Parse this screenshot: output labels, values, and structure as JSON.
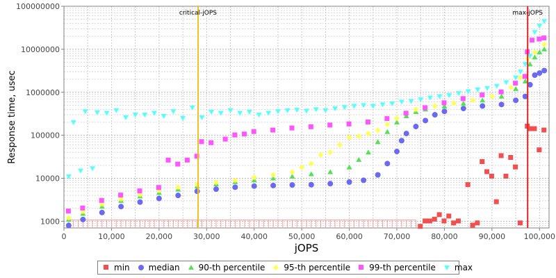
{
  "chart_data": {
    "type": "scatter",
    "xlabel": "jOPS",
    "ylabel": "Response time, usec",
    "xlim": [
      0,
      102000
    ],
    "ylim": [
      700,
      100000000
    ],
    "y_scale": "log",
    "grid": true,
    "legend_position": "bottom",
    "x_ticks": [
      {
        "value": 0,
        "label": "0"
      },
      {
        "value": 10000,
        "label": "10,000"
      },
      {
        "value": 20000,
        "label": "20,000"
      },
      {
        "value": 30000,
        "label": "30,000"
      },
      {
        "value": 40000,
        "label": "40,000"
      },
      {
        "value": 50000,
        "label": "50,000"
      },
      {
        "value": 60000,
        "label": "60,000"
      },
      {
        "value": 70000,
        "label": "70,000"
      },
      {
        "value": 80000,
        "label": "80,000"
      },
      {
        "value": 90000,
        "label": "90,000"
      },
      {
        "value": 100000,
        "label": "100,000"
      }
    ],
    "y_ticks": [
      {
        "value": 1000,
        "label": "1000"
      },
      {
        "value": 10000,
        "label": "10000"
      },
      {
        "value": 100000,
        "label": "100000"
      },
      {
        "value": 1000000,
        "label": "1000000"
      },
      {
        "value": 10000000,
        "label": "10000000"
      },
      {
        "value": 100000000,
        "label": "100000000"
      }
    ],
    "annotations": [
      {
        "label": "critical-jOPS",
        "x": 28200,
        "color": "#f0c020"
      },
      {
        "label": "max-jOPS",
        "x": 97500,
        "color": "#e62020"
      }
    ],
    "series": [
      {
        "name": "min",
        "color": "#f05050",
        "marker": "square",
        "points": [
          [
            75000,
            750
          ],
          [
            76000,
            1000
          ],
          [
            77000,
            1000
          ],
          [
            78000,
            1100
          ],
          [
            79000,
            1400
          ],
          [
            80000,
            1000
          ],
          [
            81000,
            1300
          ],
          [
            82000,
            900
          ],
          [
            83000,
            1000
          ],
          [
            85000,
            7000
          ],
          [
            86000,
            800
          ],
          [
            87000,
            900
          ],
          [
            88000,
            24000
          ],
          [
            89000,
            14000
          ],
          [
            90000,
            11000
          ],
          [
            91000,
            2800
          ],
          [
            92000,
            33000
          ],
          [
            93000,
            11000
          ],
          [
            94000,
            30000
          ],
          [
            95000,
            18000
          ],
          [
            96000,
            900
          ],
          [
            97500,
            160000
          ],
          [
            98000,
            140000
          ],
          [
            99000,
            140000
          ],
          [
            100000,
            45000
          ],
          [
            101000,
            130000
          ]
        ]
      },
      {
        "name": "median",
        "color": "#6a6af0",
        "marker": "circle",
        "points": [
          [
            1000,
            800
          ],
          [
            4000,
            1100
          ],
          [
            8000,
            1600
          ],
          [
            12000,
            2200
          ],
          [
            16000,
            2800
          ],
          [
            20000,
            3400
          ],
          [
            24000,
            4000
          ],
          [
            28000,
            5000
          ],
          [
            32000,
            5600
          ],
          [
            36000,
            6200
          ],
          [
            40000,
            6600
          ],
          [
            44000,
            6800
          ],
          [
            48000,
            7000
          ],
          [
            52000,
            7100
          ],
          [
            56000,
            7500
          ],
          [
            60000,
            8200
          ],
          [
            63000,
            9000
          ],
          [
            66000,
            12000
          ],
          [
            68000,
            22000
          ],
          [
            70000,
            42000
          ],
          [
            71000,
            75000
          ],
          [
            72000,
            110000
          ],
          [
            74000,
            160000
          ],
          [
            76000,
            220000
          ],
          [
            78000,
            300000
          ],
          [
            80000,
            360000
          ],
          [
            84000,
            420000
          ],
          [
            88000,
            480000
          ],
          [
            92000,
            520000
          ],
          [
            95000,
            650000
          ],
          [
            97000,
            800000
          ],
          [
            98000,
            1500000
          ],
          [
            99000,
            2500000
          ],
          [
            100000,
            2800000
          ],
          [
            101000,
            3200000
          ]
        ]
      },
      {
        "name": "90-th percentile",
        "color": "#55e055",
        "marker": "triangle-up",
        "points": [
          [
            1000,
            1100
          ],
          [
            4000,
            1500
          ],
          [
            8000,
            2200
          ],
          [
            12000,
            3000
          ],
          [
            16000,
            3800
          ],
          [
            20000,
            4600
          ],
          [
            24000,
            5500
          ],
          [
            28000,
            6500
          ],
          [
            32000,
            7300
          ],
          [
            36000,
            8200
          ],
          [
            40000,
            9000
          ],
          [
            44000,
            10000
          ],
          [
            48000,
            11000
          ],
          [
            52000,
            12500
          ],
          [
            56000,
            14000
          ],
          [
            60000,
            18000
          ],
          [
            62000,
            27000
          ],
          [
            64000,
            40000
          ],
          [
            66000,
            70000
          ],
          [
            68000,
            120000
          ],
          [
            70000,
            200000
          ],
          [
            72000,
            280000
          ],
          [
            74000,
            350000
          ],
          [
            76000,
            400000
          ],
          [
            80000,
            470000
          ],
          [
            84000,
            550000
          ],
          [
            88000,
            650000
          ],
          [
            92000,
            800000
          ],
          [
            95000,
            1200000
          ],
          [
            97000,
            1800000
          ],
          [
            98000,
            4500000
          ],
          [
            99000,
            6500000
          ],
          [
            100000,
            8500000
          ],
          [
            101000,
            10000000
          ]
        ]
      },
      {
        "name": "95-th percentile",
        "color": "#ffff55",
        "marker": "diamond",
        "points": [
          [
            1000,
            1200
          ],
          [
            4000,
            1700
          ],
          [
            8000,
            2500
          ],
          [
            12000,
            3300
          ],
          [
            16000,
            4200
          ],
          [
            20000,
            5200
          ],
          [
            24000,
            6200
          ],
          [
            28000,
            7200
          ],
          [
            32000,
            8000
          ],
          [
            36000,
            9000
          ],
          [
            40000,
            10500
          ],
          [
            44000,
            12000
          ],
          [
            48000,
            14000
          ],
          [
            50000,
            18000
          ],
          [
            52000,
            22000
          ],
          [
            54000,
            35000
          ],
          [
            56000,
            40000
          ],
          [
            58000,
            60000
          ],
          [
            60000,
            90000
          ],
          [
            62000,
            95000
          ],
          [
            64000,
            110000
          ],
          [
            66000,
            130000
          ],
          [
            68000,
            180000
          ],
          [
            70000,
            250000
          ],
          [
            72000,
            330000
          ],
          [
            74000,
            400000
          ],
          [
            78000,
            480000
          ],
          [
            82000,
            560000
          ],
          [
            86000,
            650000
          ],
          [
            90000,
            800000
          ],
          [
            94000,
            1300000
          ],
          [
            96000,
            2200000
          ],
          [
            97500,
            6000000
          ],
          [
            99000,
            8500000
          ],
          [
            101000,
            13000000
          ]
        ]
      },
      {
        "name": "99-th percentile",
        "color": "#ff55ff",
        "marker": "square",
        "points": [
          [
            1000,
            1700
          ],
          [
            4000,
            2000
          ],
          [
            8000,
            3000
          ],
          [
            12000,
            4000
          ],
          [
            16000,
            5000
          ],
          [
            20000,
            6000
          ],
          [
            22000,
            26000
          ],
          [
            24000,
            21000
          ],
          [
            26000,
            26000
          ],
          [
            28000,
            32000
          ],
          [
            29000,
            70000
          ],
          [
            31000,
            66000
          ],
          [
            34000,
            80000
          ],
          [
            36000,
            100000
          ],
          [
            38000,
            105000
          ],
          [
            40000,
            120000
          ],
          [
            44000,
            130000
          ],
          [
            48000,
            145000
          ],
          [
            52000,
            155000
          ],
          [
            56000,
            170000
          ],
          [
            60000,
            180000
          ],
          [
            64000,
            200000
          ],
          [
            68000,
            240000
          ],
          [
            72000,
            320000
          ],
          [
            76000,
            430000
          ],
          [
            80000,
            560000
          ],
          [
            84000,
            700000
          ],
          [
            88000,
            850000
          ],
          [
            92000,
            1000000
          ],
          [
            95000,
            1600000
          ],
          [
            97000,
            2300000
          ],
          [
            97500,
            8500000
          ],
          [
            98500,
            16000000
          ],
          [
            100000,
            17000000
          ],
          [
            101000,
            18000000
          ]
        ]
      },
      {
        "name": "max",
        "color": "#55ffff",
        "marker": "triangle-down",
        "points": [
          [
            1000,
            11000
          ],
          [
            2000,
            200000
          ],
          [
            3500,
            15000
          ],
          [
            4500,
            360000
          ],
          [
            6000,
            17000
          ],
          [
            7000,
            340000
          ],
          [
            9000,
            330000
          ],
          [
            11000,
            380000
          ],
          [
            13000,
            260000
          ],
          [
            15000,
            300000
          ],
          [
            17000,
            300000
          ],
          [
            19000,
            330000
          ],
          [
            21000,
            280000
          ],
          [
            23000,
            360000
          ],
          [
            25000,
            250000
          ],
          [
            27000,
            440000
          ],
          [
            29000,
            260000
          ],
          [
            31000,
            350000
          ],
          [
            33000,
            330000
          ],
          [
            35000,
            380000
          ],
          [
            37000,
            330000
          ],
          [
            39000,
            350000
          ],
          [
            41000,
            300000
          ],
          [
            43000,
            330000
          ],
          [
            45000,
            360000
          ],
          [
            47000,
            380000
          ],
          [
            49000,
            390000
          ],
          [
            51000,
            370000
          ],
          [
            53000,
            400000
          ],
          [
            55000,
            380000
          ],
          [
            57000,
            420000
          ],
          [
            59000,
            450000
          ],
          [
            61000,
            480000
          ],
          [
            63000,
            500000
          ],
          [
            65000,
            480000
          ],
          [
            67000,
            520000
          ],
          [
            69000,
            550000
          ],
          [
            71000,
            600000
          ],
          [
            73000,
            620000
          ],
          [
            75000,
            680000
          ],
          [
            77000,
            750000
          ],
          [
            79000,
            800000
          ],
          [
            81000,
            850000
          ],
          [
            83000,
            950000
          ],
          [
            85000,
            1050000
          ],
          [
            87000,
            1150000
          ],
          [
            89000,
            1250000
          ],
          [
            91000,
            1400000
          ],
          [
            93000,
            1700000
          ],
          [
            95000,
            2200000
          ],
          [
            96000,
            3000000
          ],
          [
            97000,
            4500000
          ],
          [
            98000,
            7000000
          ],
          [
            99000,
            25000000
          ],
          [
            100000,
            35000000
          ],
          [
            101000,
            45000000
          ]
        ]
      }
    ]
  }
}
